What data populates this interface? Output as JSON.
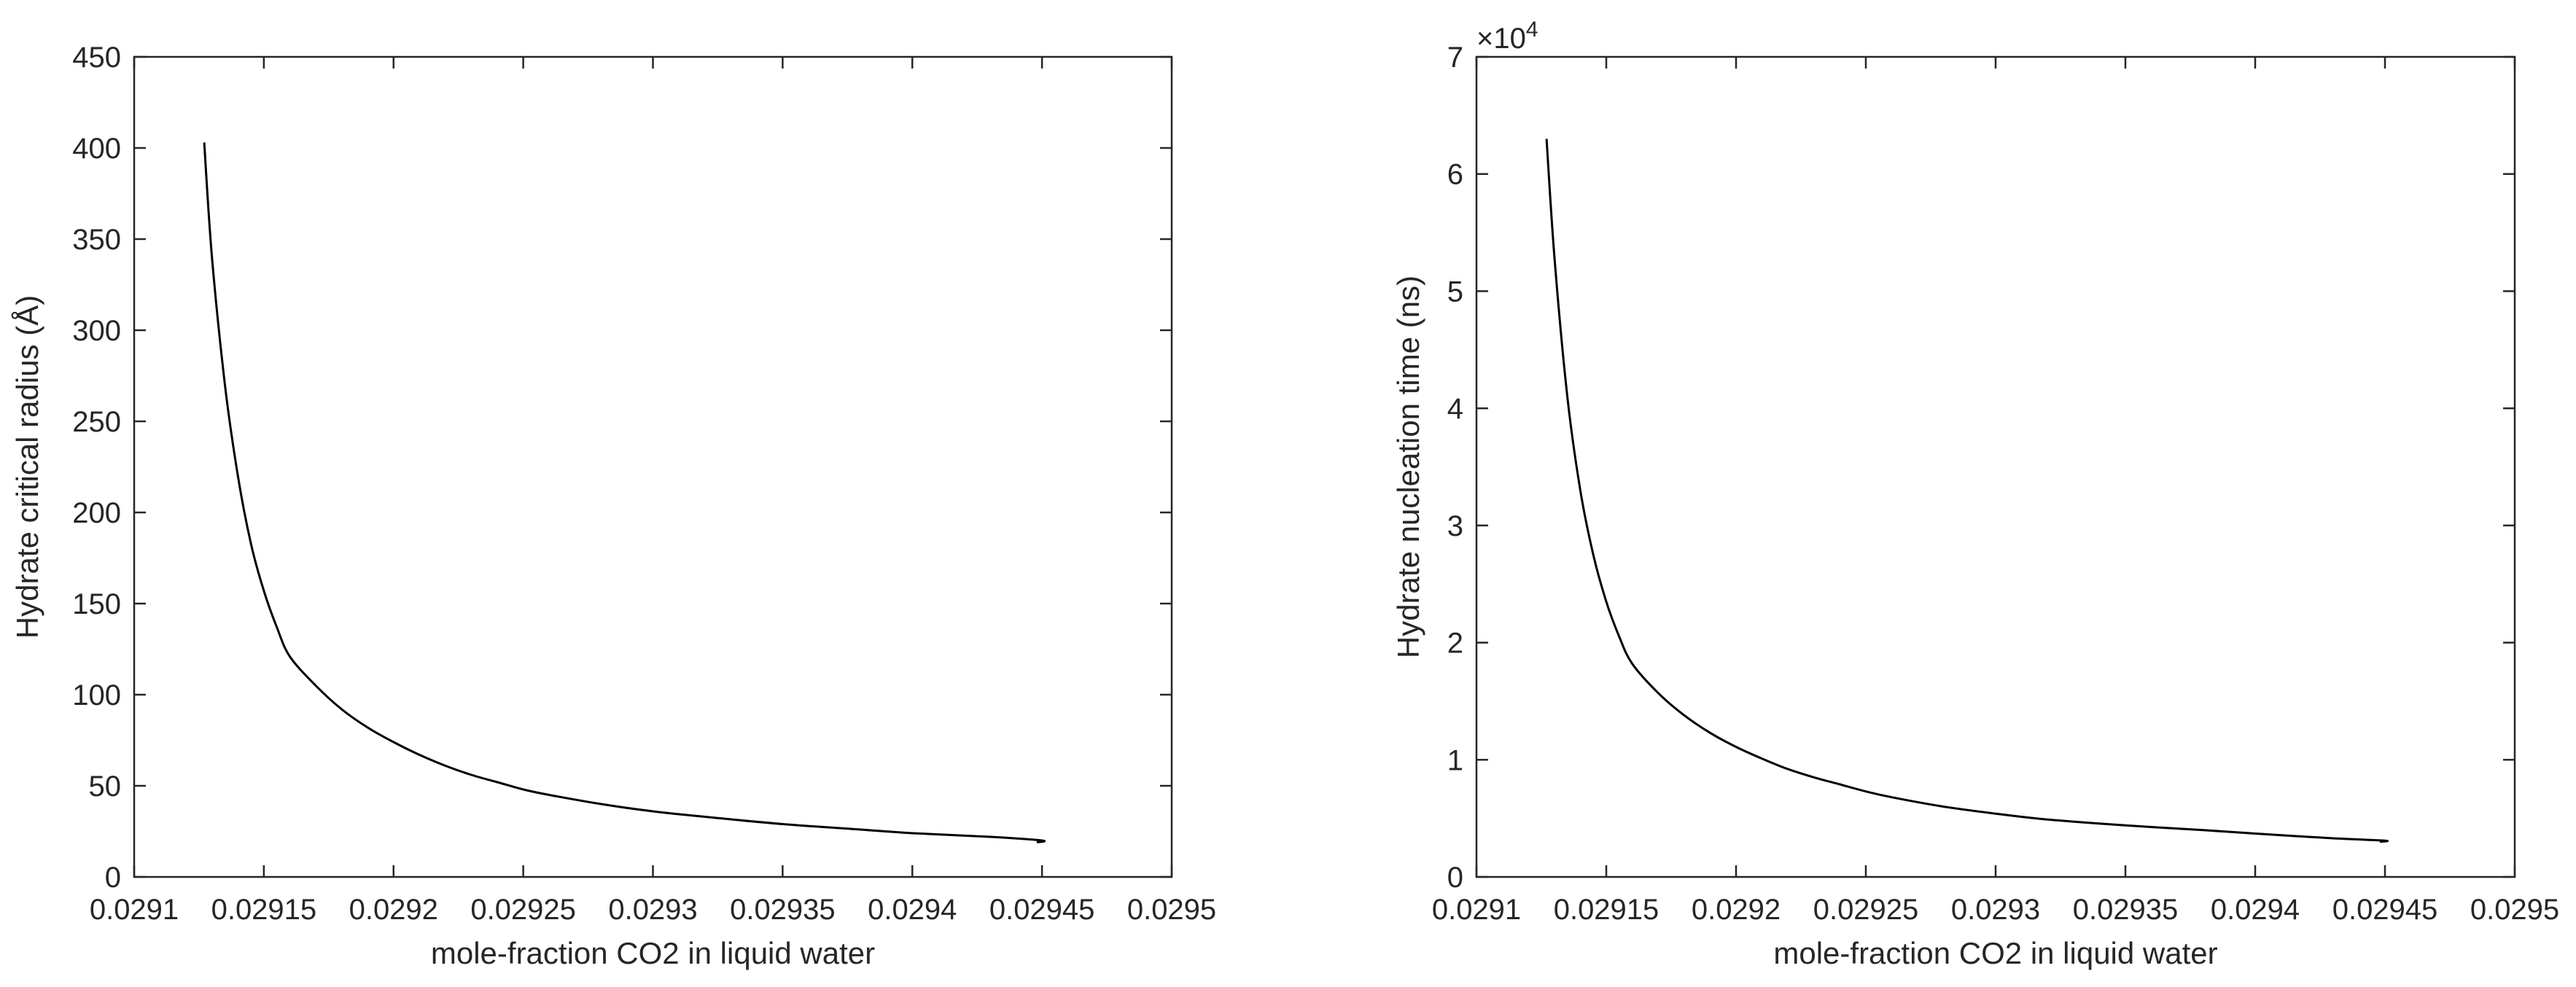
{
  "chart_data": [
    {
      "type": "line",
      "title": "",
      "xlabel": "mole-fraction CO2 in liquid water",
      "ylabel": "Hydrate critical radius (Å)",
      "xlim": [
        0.0291,
        0.0295
      ],
      "ylim": [
        0,
        450
      ],
      "xticks": [
        0.0291,
        0.02915,
        0.0292,
        0.02925,
        0.0293,
        0.02935,
        0.0294,
        0.02945,
        0.0295
      ],
      "xtick_labels": [
        "0.0291",
        "0.02915",
        "0.0292",
        "0.02925",
        "0.0293",
        "0.02935",
        "0.0294",
        "0.02945",
        "0.0295"
      ],
      "yticks": [
        0,
        50,
        100,
        150,
        200,
        250,
        300,
        350,
        400,
        450
      ],
      "ytick_labels": [
        "0",
        "50",
        "100",
        "150",
        "200",
        "250",
        "300",
        "350",
        "400",
        "450"
      ],
      "y_exponent_label": "",
      "grid": false,
      "series": [
        {
          "color": "#000000",
          "x": [
            0.029127,
            0.02913,
            0.029135,
            0.02914,
            0.029145,
            0.02915,
            0.029155,
            0.02916,
            0.02917,
            0.02918,
            0.02919,
            0.0292,
            0.02921,
            0.02922,
            0.02923,
            0.02924,
            0.02925,
            0.02926,
            0.02928,
            0.0293,
            0.02932,
            0.02935,
            0.02938,
            0.0294,
            0.02943,
            0.02945,
            0.029448
          ],
          "y": [
            403,
            340,
            270,
            220,
            183,
            157,
            137,
            121,
            105,
            92,
            82,
            74,
            67,
            61,
            56,
            52,
            48,
            45,
            40,
            36,
            33,
            29,
            26,
            24,
            22,
            20,
            19
          ]
        }
      ]
    },
    {
      "type": "line",
      "title": "",
      "xlabel": "mole-fraction CO2 in liquid water",
      "ylabel": "Hydrate nucleation time (ns)",
      "xlim": [
        0.0291,
        0.0295
      ],
      "ylim": [
        0,
        70000
      ],
      "xticks": [
        0.0291,
        0.02915,
        0.0292,
        0.02925,
        0.0293,
        0.02935,
        0.0294,
        0.02945,
        0.0295
      ],
      "xtick_labels": [
        "0.0291",
        "0.02915",
        "0.0292",
        "0.02925",
        "0.0293",
        "0.02935",
        "0.0294",
        "0.02945",
        "0.0295"
      ],
      "yticks": [
        0,
        10000,
        20000,
        30000,
        40000,
        50000,
        60000,
        70000
      ],
      "ytick_labels": [
        "0",
        "1",
        "2",
        "3",
        "4",
        "5",
        "6",
        "7"
      ],
      "y_exponent_label": "×10",
      "y_exponent_power": "4",
      "grid": false,
      "series": [
        {
          "color": "#000000",
          "x": [
            0.029127,
            0.02913,
            0.029135,
            0.02914,
            0.029145,
            0.02915,
            0.029155,
            0.02916,
            0.02917,
            0.02918,
            0.02919,
            0.0292,
            0.02921,
            0.02922,
            0.02923,
            0.02924,
            0.02925,
            0.02926,
            0.02928,
            0.0293,
            0.02932,
            0.02935,
            0.02938,
            0.0294,
            0.02943,
            0.02945,
            0.029448
          ],
          "y": [
            63000,
            53000,
            41000,
            33000,
            27500,
            23500,
            20500,
            18200,
            15700,
            13800,
            12300,
            11100,
            10100,
            9200,
            8500,
            7900,
            7300,
            6800,
            6000,
            5400,
            4900,
            4400,
            4000,
            3700,
            3300,
            3100,
            3000
          ]
        }
      ]
    }
  ]
}
